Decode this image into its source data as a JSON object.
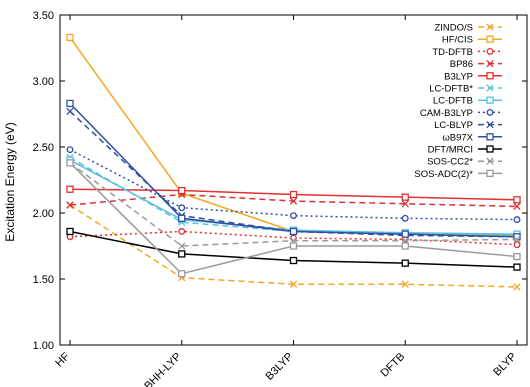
{
  "chart_data": {
    "type": "line",
    "title": "",
    "xlabel": "",
    "ylabel": "Excitation Energy (eV)",
    "categories": [
      "HF",
      "BHH-LYP",
      "B3LYP",
      "DFTB",
      "BLYP"
    ],
    "ylim": [
      1.0,
      3.5
    ],
    "yticks": [
      1.0,
      1.5,
      2.0,
      2.5,
      3.0,
      3.5
    ],
    "ytick_labels": [
      "1.00",
      "1.50",
      "2.00",
      "2.50",
      "3.00",
      "3.50"
    ],
    "grid": false,
    "legend_position": "top-right",
    "series": [
      {
        "name": "ZINDO/S",
        "color": "#f5a623",
        "dash": "dashed",
        "marker": "x",
        "values": [
          2.06,
          1.51,
          1.46,
          1.46,
          1.44
        ]
      },
      {
        "name": "HF/CIS",
        "color": "#f5a623",
        "dash": "solid",
        "marker": "square",
        "values": [
          3.33,
          2.15,
          1.86,
          1.84,
          1.83
        ]
      },
      {
        "name": "TD-DFTB",
        "color": "#e03030",
        "dash": "dotted",
        "marker": "circle",
        "values": [
          1.82,
          1.86,
          1.81,
          1.8,
          1.76
        ]
      },
      {
        "name": "BP86",
        "color": "#e03030",
        "dash": "dashed",
        "marker": "x",
        "values": [
          2.06,
          2.14,
          2.09,
          2.07,
          2.05
        ]
      },
      {
        "name": "B3LYP",
        "color": "#e03030",
        "dash": "solid",
        "marker": "square",
        "values": [
          2.18,
          2.17,
          2.14,
          2.12,
          2.1
        ]
      },
      {
        "name": "LC-DFTB*",
        "color": "#5bc0de",
        "dash": "dashed",
        "marker": "x",
        "values": [
          2.42,
          1.93,
          1.86,
          1.85,
          1.83
        ]
      },
      {
        "name": "LC-DFTB",
        "color": "#5bc0de",
        "dash": "solid",
        "marker": "square",
        "values": [
          2.4,
          1.95,
          1.87,
          1.85,
          1.84
        ]
      },
      {
        "name": "CAM-B3LYP",
        "color": "#2e4fa3",
        "dash": "dotted",
        "marker": "circle",
        "values": [
          2.48,
          2.04,
          1.98,
          1.96,
          1.95
        ]
      },
      {
        "name": "LC-BLYP",
        "color": "#2e4fa3",
        "dash": "dashed",
        "marker": "x",
        "values": [
          2.77,
          1.98,
          1.86,
          1.83,
          1.82
        ]
      },
      {
        "name": "ωB97X",
        "color": "#2e4fa3",
        "dash": "solid",
        "marker": "square",
        "values": [
          2.83,
          1.96,
          1.86,
          1.84,
          1.82
        ]
      },
      {
        "name": "DFT/MRCI",
        "color": "#000000",
        "dash": "solid",
        "marker": "square",
        "values": [
          1.86,
          1.69,
          1.64,
          1.62,
          1.59
        ]
      },
      {
        "name": "SOS-CC2*",
        "color": "#9a9a9a",
        "dash": "dashed",
        "marker": "x",
        "values": [
          2.38,
          1.75,
          1.79,
          1.79,
          1.8
        ]
      },
      {
        "name": "SOS-ADC(2)*",
        "color": "#9a9a9a",
        "dash": "solid",
        "marker": "square",
        "values": [
          2.38,
          1.54,
          1.75,
          1.75,
          1.67
        ]
      }
    ]
  }
}
